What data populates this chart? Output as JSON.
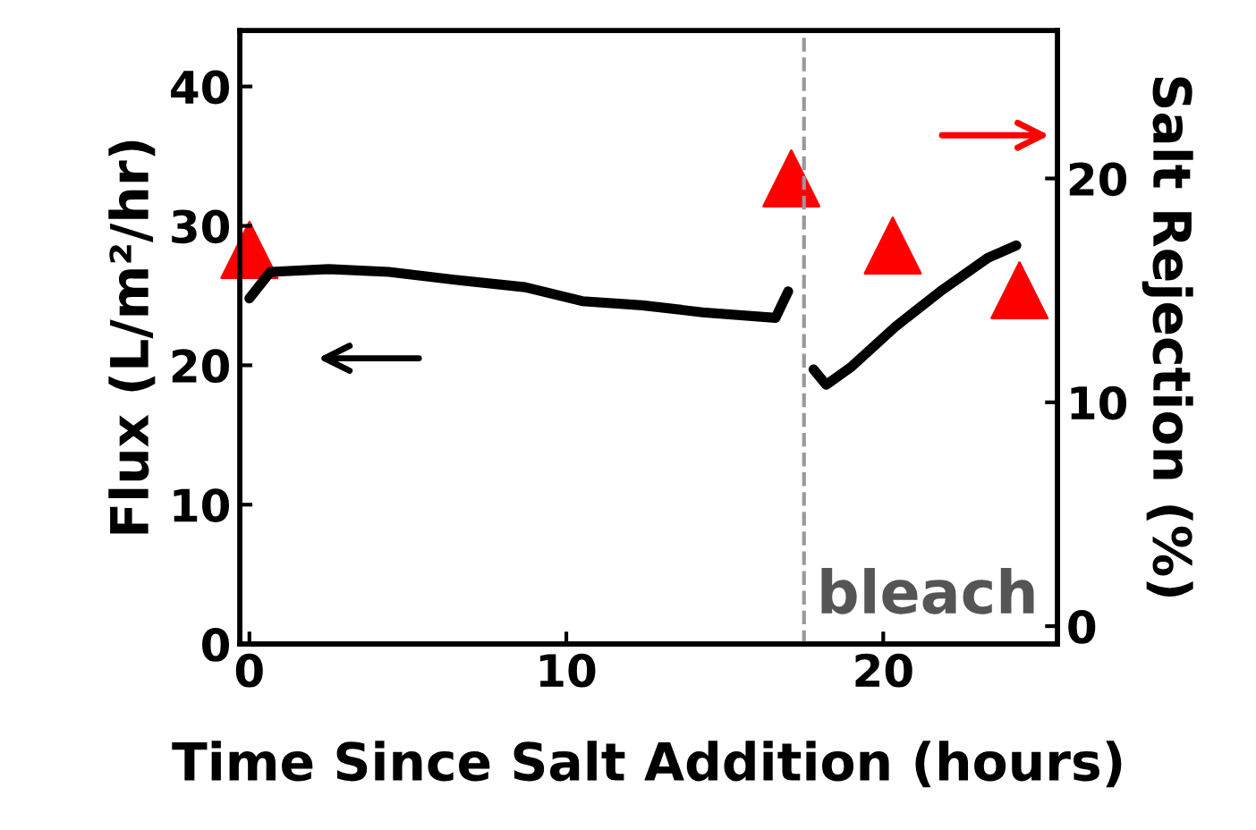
{
  "chart_data": {
    "type": "line",
    "xlabel": "Time Since Salt Addition (hours)",
    "ylabel": "Flux (L/m²/hr)",
    "y2label": "Salt Rejection (%)",
    "xlim": [
      -0.3,
      25.5
    ],
    "xticks": [
      0,
      10,
      20
    ],
    "ylim": [
      0,
      44
    ],
    "yticks": [
      0,
      10,
      20,
      30,
      40
    ],
    "y2lim": [
      -0.8,
      26.6
    ],
    "y2ticks": [
      0,
      10,
      20
    ],
    "grid": false,
    "legend": false,
    "series": [
      {
        "color": "#000000",
        "marker": "none",
        "line_style": "solid",
        "x": [
          0,
          0.66,
          2.5,
          4.4,
          6.6,
          8.7,
          10.5,
          12.4,
          14.3,
          16.6,
          17.0,
          17.4,
          17.8,
          18.2,
          19.0,
          20.4,
          21.8,
          23.3,
          24.2
        ],
        "values": [
          24.8,
          26.7,
          26.9,
          26.7,
          26.1,
          25.6,
          24.6,
          24.3,
          23.8,
          23.4,
          25.3,
          null,
          19.7,
          18.6,
          19.9,
          22.8,
          25.3,
          27.7,
          28.6
        ]
      },
      {
        "type": "scatter",
        "axis": "y2",
        "color": "#ff0000",
        "marker": "triangle",
        "x": [
          0,
          17.1,
          20.3,
          24.3
        ],
        "values": [
          16.8,
          20,
          17.0,
          15.0
        ]
      }
    ],
    "ref_lines": [
      {
        "axis": "x",
        "value": 17.5,
        "label": "bleach",
        "color": "#999999",
        "line_style": "dashed"
      }
    ]
  }
}
